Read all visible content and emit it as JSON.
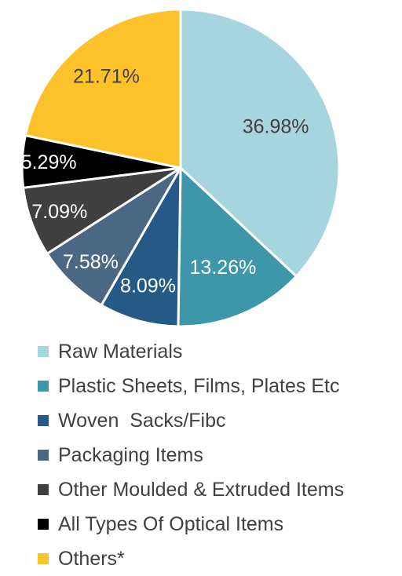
{
  "chart_data": {
    "type": "pie",
    "title": "",
    "start_angle_deg": 0,
    "direction": "clockwise",
    "slices": [
      {
        "label": "Raw Materials",
        "value": 36.98,
        "display": "36.98%",
        "color": "#a7d5df",
        "label_color": "#404040"
      },
      {
        "label": "Plastic Sheets, Films, Plates Etc",
        "value": 13.26,
        "display": "13.26%",
        "color": "#3e97a8",
        "label_color": "#ffffff"
      },
      {
        "label": "Woven  Sacks/Fibc",
        "value": 8.09,
        "display": "8.09%",
        "color": "#255a87",
        "label_color": "#ffffff"
      },
      {
        "label": "Packaging Items",
        "value": 7.58,
        "display": "7.58%",
        "color": "#4b6783",
        "label_color": "#ffffff"
      },
      {
        "label": "Other Moulded & Extruded Items",
        "value": 7.09,
        "display": "7.09%",
        "color": "#404040",
        "label_color": "#ffffff"
      },
      {
        "label": "All Types Of Optical Items",
        "value": 5.29,
        "display": "5.29%",
        "color": "#000000",
        "label_color": "#ffffff"
      },
      {
        "label": "Others*",
        "value": 21.71,
        "display": "21.71%",
        "color": "#fdc12a",
        "label_color": "#404040"
      }
    ],
    "legend_position": "bottom"
  }
}
